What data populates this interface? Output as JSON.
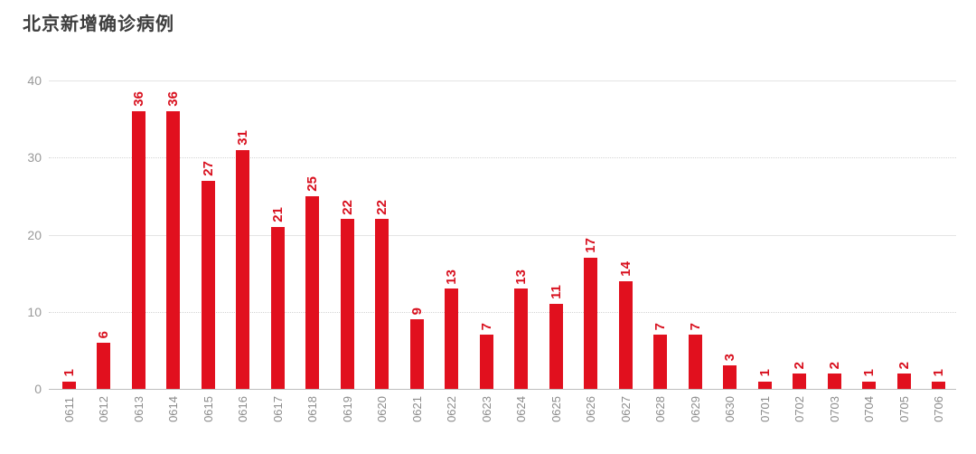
{
  "title": "北京新增确诊病例",
  "colors": {
    "bar": "#e1101e",
    "value_label": "#d8101e",
    "title": "#3d3d3d",
    "y_tick_label": "#999999",
    "x_tick_label": "#8c8c8c",
    "gridline_solid": "#e4e4e4",
    "gridline_dotted": "#d4d4d4",
    "axis_line": "#bdbdbd"
  },
  "chart_data": {
    "type": "bar",
    "title": "北京新增确诊病例",
    "categories": [
      "0611",
      "0612",
      "0613",
      "0614",
      "0615",
      "0616",
      "0617",
      "0618",
      "0619",
      "0620",
      "0621",
      "0622",
      "0623",
      "0624",
      "0625",
      "0626",
      "0627",
      "0628",
      "0629",
      "0630",
      "0701",
      "0702",
      "0703",
      "0704",
      "0705",
      "0706"
    ],
    "values": [
      1,
      6,
      36,
      36,
      27,
      31,
      21,
      25,
      22,
      22,
      9,
      13,
      7,
      13,
      11,
      17,
      14,
      7,
      7,
      3,
      1,
      2,
      2,
      1,
      2,
      1
    ],
    "xlabel": "",
    "ylabel": "",
    "ylim": [
      0,
      40
    ],
    "yticks": [
      0,
      10,
      20,
      30,
      40
    ],
    "grid": "horizontal, solid at 0/20/40, dotted at 10/30",
    "legend": "none",
    "bar_labels_shown": true,
    "labels_rotated_90deg": true
  }
}
